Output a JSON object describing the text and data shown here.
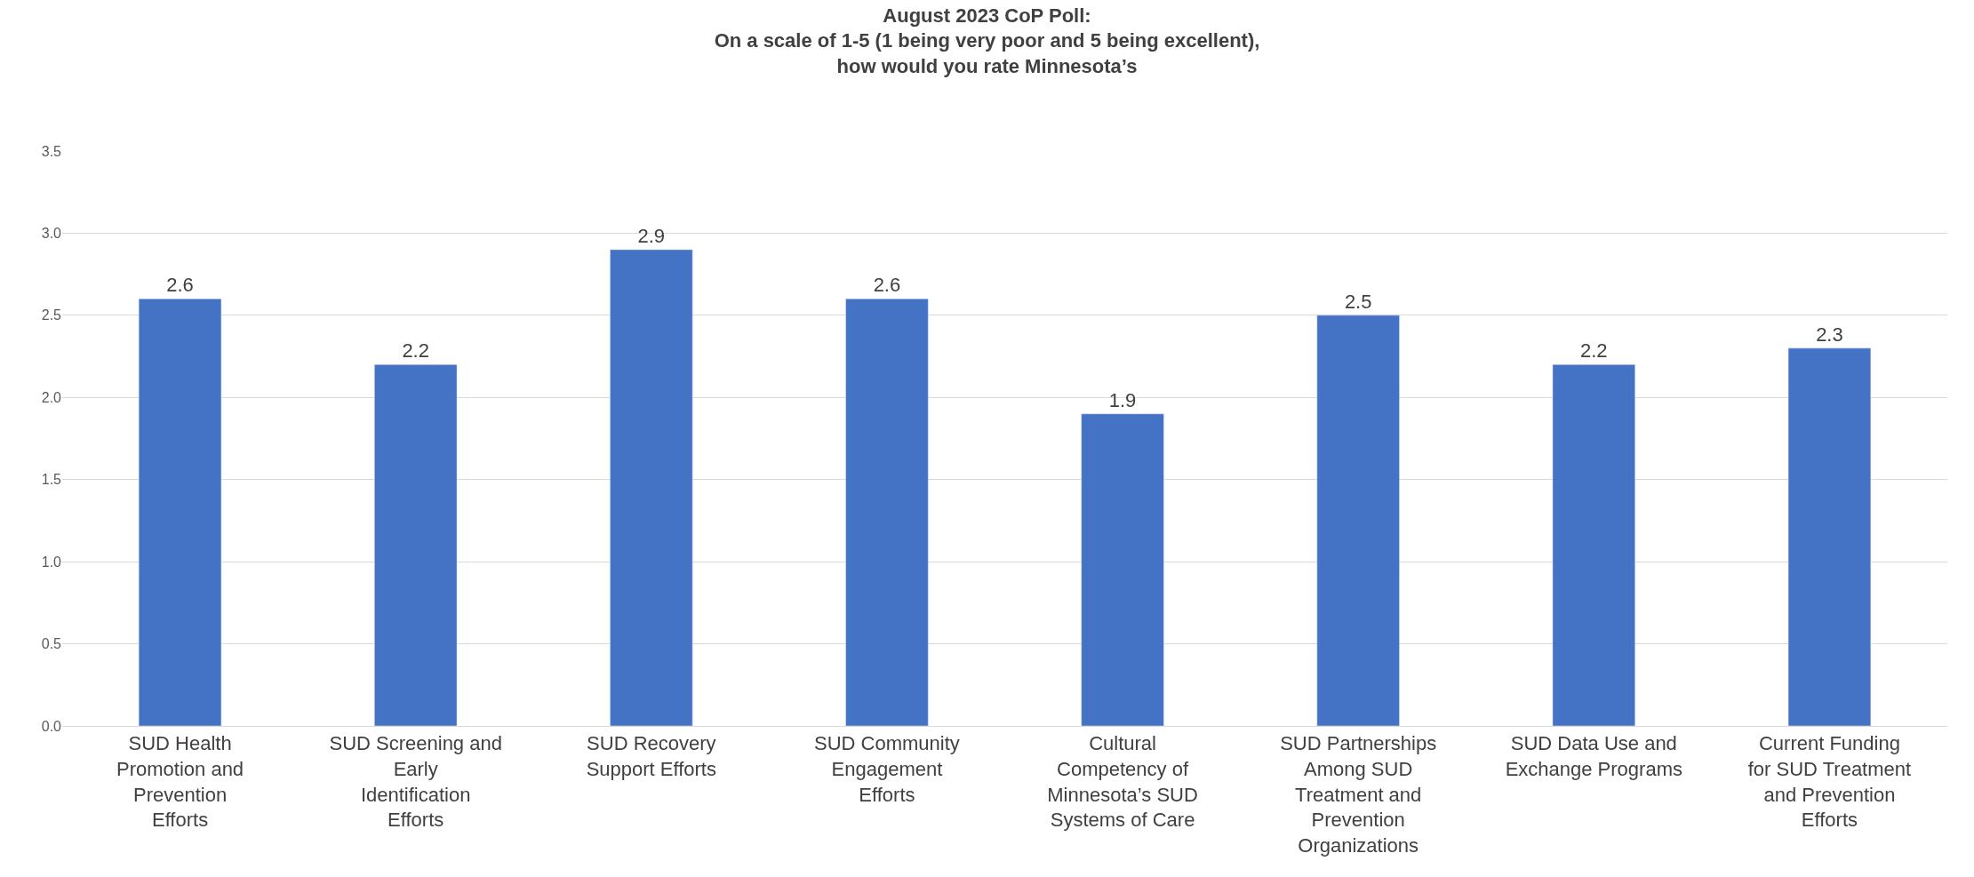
{
  "chart_data": {
    "type": "bar",
    "title": "August 2023 CoP Poll:\nOn a scale of 1-5 (1 being very poor and 5 being excellent),\nhow would you rate Minnesota’s",
    "categories": [
      "SUD Health Promotion and Prevention Efforts",
      "SUD Screening and Early Identification Efforts",
      "SUD Recovery Support Efforts",
      "SUD Community Engagement Efforts",
      "Cultural Competency of Minnesota’s SUD Systems of Care",
      "SUD Partnerships Among SUD Treatment and Prevention Organizations",
      "SUD Data Use and Exchange Programs",
      "Current Funding for SUD Treatment and Prevention Efforts"
    ],
    "values": [
      2.6,
      2.2,
      2.9,
      2.6,
      1.9,
      2.5,
      2.2,
      2.3
    ],
    "color": "#4472c4",
    "ylim": [
      0,
      3.5
    ],
    "yticks": [
      {
        "value": 0,
        "label": "0.0"
      },
      {
        "value": 0.5,
        "label": "0.5"
      },
      {
        "value": 1,
        "label": "1.0"
      },
      {
        "value": 1.5,
        "label": "1.5"
      },
      {
        "value": 2,
        "label": "2.0"
      },
      {
        "value": 2.5,
        "label": "2.5"
      },
      {
        "value": 3,
        "label": "3.0"
      },
      {
        "value": 3.5,
        "label": "3.5"
      }
    ],
    "grid": "y",
    "data_labels": true
  }
}
